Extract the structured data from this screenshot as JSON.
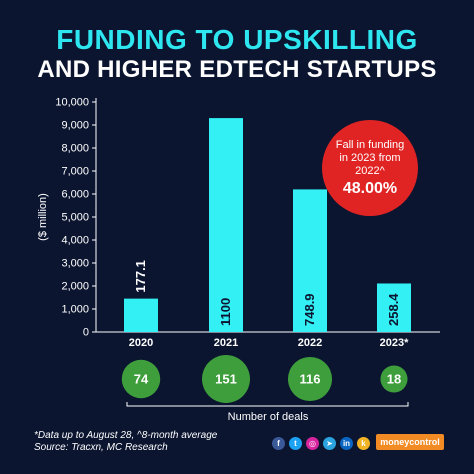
{
  "header": {
    "title_line1": "FUNDING TO UPSKILLING",
    "title_line2": "AND HIGHER EDTECH STARTUPS"
  },
  "chart_data": {
    "type": "bar",
    "ylabel": "($ million)",
    "ylim": [
      0,
      10000
    ],
    "yticks": [
      "0",
      "1,000",
      "2,000",
      "3,000",
      "4,000",
      "5,000",
      "6,000",
      "7,000",
      "8,000",
      "9,000",
      "10,000"
    ],
    "categories": [
      "2020",
      "2021",
      "2022",
      "2023*"
    ],
    "values": [
      1451,
      9300,
      6200,
      2110
    ],
    "value_labels": [
      "177.1",
      "1100",
      "748.9",
      "258.4"
    ],
    "deals": [
      74,
      151,
      116,
      18
    ],
    "deals_label": "Number of deals",
    "bar_color": "#33f0f5",
    "deal_color": "#3f9e3c",
    "grid": false
  },
  "callout": {
    "text": "Fall in funding in 2023 from 2022^",
    "value": "48.00%",
    "color": "#e02424"
  },
  "footnote": {
    "line1": "*Data up to August 28, ^8-month average",
    "line2": "Source: Tracxn, MC Research"
  },
  "social_icons": [
    {
      "name": "facebook-icon",
      "glyph": "f",
      "color": "#3b5998"
    },
    {
      "name": "twitter-icon",
      "glyph": "t",
      "color": "#1da1f2"
    },
    {
      "name": "instagram-icon",
      "glyph": "◎",
      "color": "#d6249f"
    },
    {
      "name": "telegram-icon",
      "glyph": "➤",
      "color": "#2aa3df"
    },
    {
      "name": "linkedin-icon",
      "glyph": "in",
      "color": "#0a66c2"
    },
    {
      "name": "koo-icon",
      "glyph": "k",
      "color": "#f2b424"
    }
  ],
  "brand": {
    "label": "moneycontrol"
  }
}
